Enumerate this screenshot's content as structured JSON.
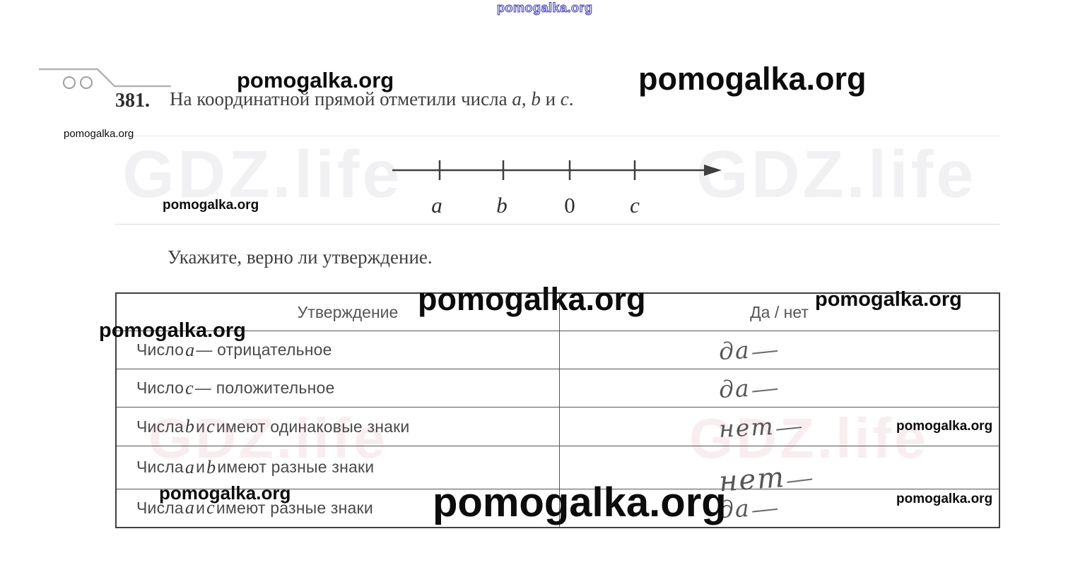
{
  "watermarks": {
    "site": "pomogalka.org",
    "background": "GDZ.life"
  },
  "problem": {
    "number": "381.",
    "statement_parts": [
      {
        "text": "На координатной прямой отметили числа ",
        "italic": false
      },
      {
        "text": "a",
        "italic": true
      },
      {
        "text": ", ",
        "italic": false
      },
      {
        "text": "b",
        "italic": true
      },
      {
        "text": " и ",
        "italic": false
      },
      {
        "text": "c",
        "italic": true
      },
      {
        "text": ".",
        "italic": false
      }
    ],
    "instruction": "Укажите, верно ли утверждение."
  },
  "number_line": {
    "labels": [
      "a",
      "b",
      "0",
      "c"
    ]
  },
  "table": {
    "headers": {
      "statement": "Утверждение",
      "answer": "Да / нет"
    },
    "rows": [
      {
        "statement_parts": [
          {
            "text": "Число ",
            "italic": false
          },
          {
            "text": "a",
            "italic": true
          },
          {
            "text": " — отрицательное",
            "italic": false
          }
        ],
        "answer": "да"
      },
      {
        "statement_parts": [
          {
            "text": "Число ",
            "italic": false
          },
          {
            "text": "c",
            "italic": true
          },
          {
            "text": " — положительное",
            "italic": false
          }
        ],
        "answer": "да"
      },
      {
        "statement_parts": [
          {
            "text": "Числа ",
            "italic": false
          },
          {
            "text": "b",
            "italic": true
          },
          {
            "text": " и ",
            "italic": false
          },
          {
            "text": "c",
            "italic": true
          },
          {
            "text": " имеют одинаковые знаки",
            "italic": false
          }
        ],
        "answer": "нет"
      },
      {
        "statement_parts": [
          {
            "text": "Числа ",
            "italic": false
          },
          {
            "text": "a",
            "italic": true
          },
          {
            "text": " и ",
            "italic": false
          },
          {
            "text": "b",
            "italic": true
          },
          {
            "text": " имеют разные знаки",
            "italic": false
          }
        ],
        "answer": "нет"
      },
      {
        "statement_parts": [
          {
            "text": "Числа ",
            "italic": false
          },
          {
            "text": "a",
            "italic": true
          },
          {
            "text": " и ",
            "italic": false
          },
          {
            "text": "c",
            "italic": true
          },
          {
            "text": " имеют разные знаки",
            "italic": false
          }
        ],
        "answer": "да"
      }
    ]
  },
  "colors": {
    "watermark_black": "#0c0c0c",
    "watermark_blue": "#3d3dc2",
    "ink": "#4a4a4a",
    "table_border": "#404040",
    "background_watermark_gray": "#f1f1f4",
    "background_watermark_pink": "rgba(205,125,135,0.13)"
  }
}
